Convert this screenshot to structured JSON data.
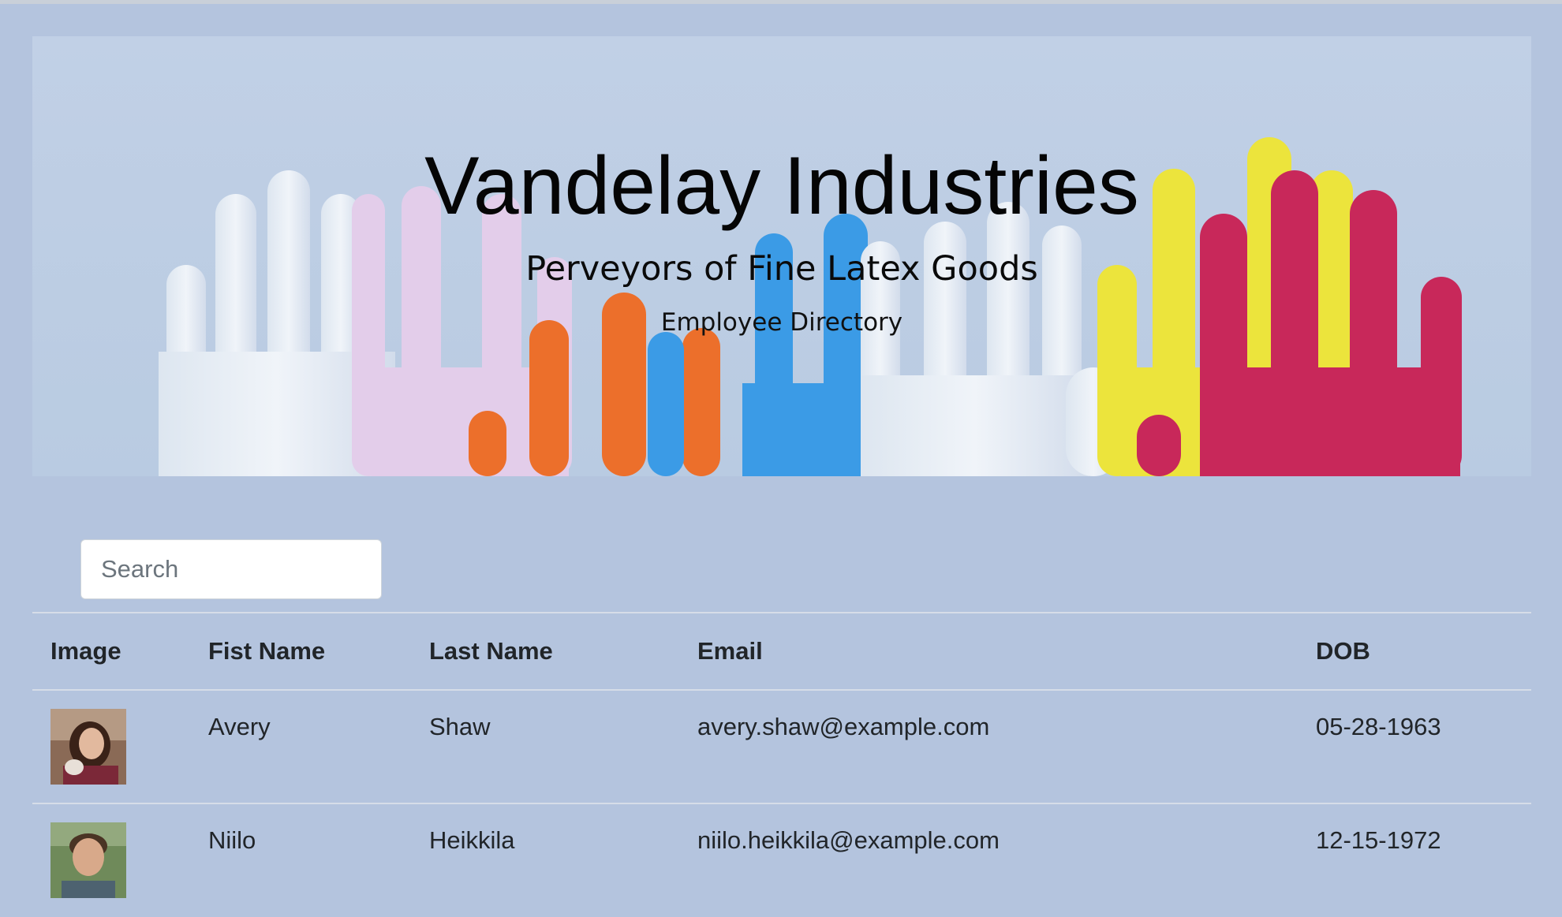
{
  "header": {
    "title": "Vandelay Industries",
    "subtitle": "Perveyors of Fine Latex Goods",
    "section": "Employee Directory"
  },
  "search": {
    "placeholder": "Search",
    "value": ""
  },
  "table": {
    "columns": [
      "Image",
      "Fist Name",
      "Last Name",
      "Email",
      "DOB"
    ],
    "rows": [
      {
        "first": "Avery",
        "last": "Shaw",
        "email": "avery.shaw@example.com",
        "dob": "05-28-1963"
      },
      {
        "first": "Niilo",
        "last": "Heikkila",
        "email": "niilo.heikkila@example.com",
        "dob": "12-15-1972"
      }
    ]
  },
  "colors": {
    "page_background": "#b4c4de",
    "glove_orange": "#ec6f2b",
    "glove_blue": "#3b9be6",
    "glove_yellow": "#ece43c",
    "glove_magenta": "#c8285a",
    "glove_lilac": "#e3cdea",
    "glove_white": "#e6edf5"
  }
}
